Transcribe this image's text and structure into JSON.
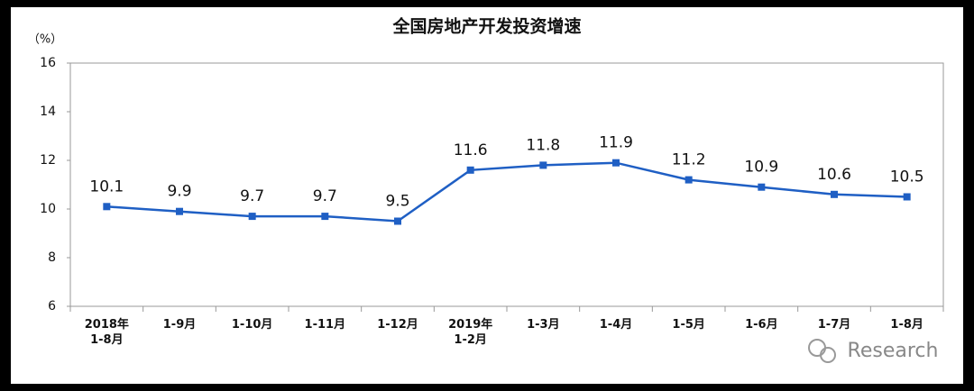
{
  "chart_data": {
    "type": "line",
    "title": "全国房地产开发投资增速",
    "y_unit": "（%）",
    "categories": [
      "2018年\n1-8月",
      "1-9月",
      "1-10月",
      "1-11月",
      "1-12月",
      "2019年\n1-2月",
      "1-3月",
      "1-4月",
      "1-5月",
      "1-6月",
      "1-7月",
      "1-8月"
    ],
    "series": [
      {
        "name": "全国房地产开发投资增速",
        "color": "#1f5fc4",
        "values": [
          10.1,
          9.9,
          9.7,
          9.7,
          9.5,
          11.6,
          11.8,
          11.9,
          11.2,
          10.9,
          10.6,
          10.5
        ]
      }
    ],
    "ylim": [
      6,
      16
    ],
    "yticks": [
      6,
      8,
      10,
      12,
      14,
      16
    ],
    "grid": false,
    "watermark": "Research"
  }
}
